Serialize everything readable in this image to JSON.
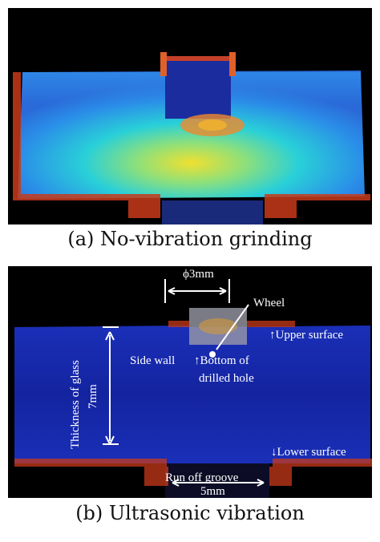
{
  "figure": {
    "panel_a": {
      "caption": "(a) No-vibration grinding"
    },
    "panel_b": {
      "caption": "(b) Ultrasonic vibration",
      "annotations": {
        "diameter": "ϕ3mm",
        "wheel": "Wheel",
        "upper_surface": "↑Upper surface",
        "side_wall": "Side wall",
        "bottom_line1": "↑Bottom of",
        "bottom_line2": "drilled hole",
        "thickness_line1": "Thickness of glass",
        "thickness_line2": "7mm",
        "lower_surface": "↓Lower surface",
        "run_off_groove": "Run off groove",
        "groove_width": "5mm"
      }
    }
  },
  "colors": {
    "background": "#000000",
    "annotation_text": "#ffffff",
    "glass_low": "#1a2cc8",
    "glass_mid": "#20c8e8",
    "glass_high": "#f0e030",
    "edge_noise": "#c83a1a"
  }
}
